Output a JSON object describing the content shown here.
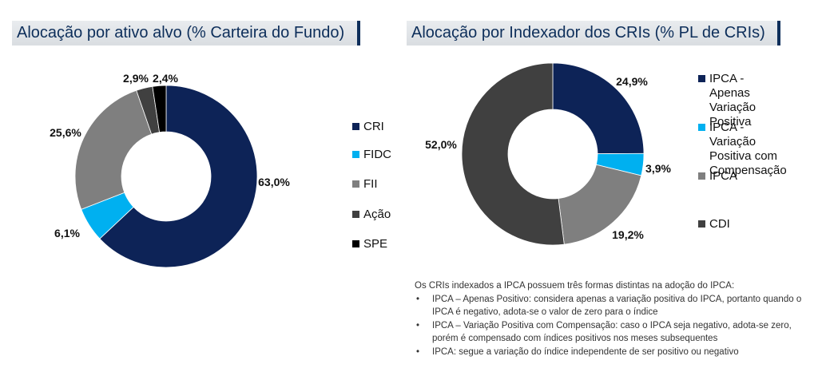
{
  "chart_data": [
    {
      "type": "pie",
      "donut": true,
      "title": "Alocação por ativo alvo (% Carteira do Fundo)",
      "categories": [
        "CRI",
        "FIDC",
        "FII",
        "Ação",
        "SPE"
      ],
      "values": [
        63.0,
        6.1,
        25.6,
        2.9,
        2.4
      ],
      "data_labels": [
        "63,0%",
        "6,1%",
        "25,6%",
        "2,9%",
        "2,4%"
      ],
      "colors": [
        "#0d2357",
        "#00b0f0",
        "#7f7f7f",
        "#404040",
        "#000000"
      ],
      "legend_position": "right"
    },
    {
      "type": "pie",
      "donut": true,
      "title": "Alocação por Indexador dos CRIs (% PL de CRIs)",
      "categories": [
        "IPCA - Apenas Variação Positiva",
        "IPCA -  Variação Positiva com Compensação",
        "IPCA",
        "CDI"
      ],
      "values": [
        24.9,
        3.9,
        19.2,
        52.0
      ],
      "data_labels": [
        "24,9%",
        "3,9%",
        "19,2%",
        "52,0%"
      ],
      "colors": [
        "#0d2357",
        "#00b0f0",
        "#7f7f7f",
        "#404040"
      ],
      "legend_position": "right"
    }
  ],
  "legend1": [
    {
      "label": "CRI",
      "color": "#0d2357"
    },
    {
      "label": "FIDC",
      "color": "#00b0f0"
    },
    {
      "label": "FII",
      "color": "#7f7f7f"
    },
    {
      "label": "Ação",
      "color": "#404040"
    },
    {
      "label": "SPE",
      "color": "#000000"
    }
  ],
  "legend2": [
    {
      "label": "IPCA - Apenas\nVariação Positiva",
      "color": "#0d2357"
    },
    {
      "label": "IPCA -  Variação\nPositiva com\nCompensação",
      "color": "#00b0f0"
    },
    {
      "label": "IPCA",
      "color": "#7f7f7f"
    },
    {
      "label": "CDI",
      "color": "#404040"
    }
  ],
  "note": {
    "intro": "Os CRIs indexados a IPCA possuem três formas distintas na adoção do IPCA:",
    "bullets": [
      "IPCA – Apenas Positivo: considera apenas a variação positiva do IPCA, portanto quando o IPCA é negativo, adota-se o valor de zero para o índice",
      "IPCA – Variação Positiva com Compensação: caso o IPCA seja negativo, adota-se zero, porém é compensado com índices positivos nos meses subsequentes",
      "IPCA: segue a variação do índice independente de ser positivo ou negativo"
    ]
  }
}
